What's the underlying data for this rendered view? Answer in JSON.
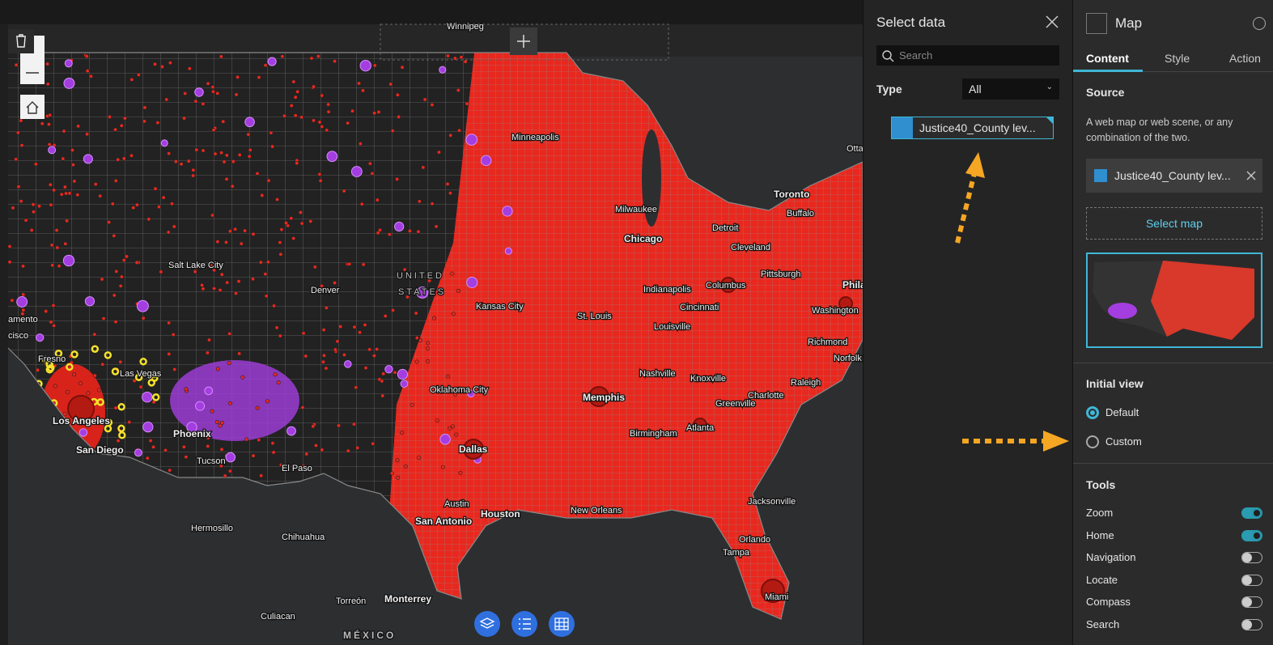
{
  "map": {
    "labels": [
      "Winnipeg",
      "Minneapolis",
      "Toronto",
      "Buffalo",
      "Otta",
      "Milwaukee",
      "Detroit",
      "Chicago",
      "Cleveland",
      "Pittsburgh",
      "Salt Lake City",
      "Denver",
      "UNITED",
      "STATES",
      "Kansas City",
      "Indianapolis",
      "Columbus",
      "Cincinnati",
      "Phila",
      "Washington",
      "St. Louis",
      "Louisville",
      "Richmond",
      "Norfolk",
      "Nashville",
      "Knoxville",
      "Raleigh",
      "Charlotte",
      "Greenville",
      "amento",
      "cisco",
      "Fresno",
      "Las Vegas",
      "Oklahoma City",
      "Memphis",
      "Atlanta",
      "Birmingham",
      "Los Angeles",
      "San Diego",
      "Phoenix",
      "Tucson",
      "El Paso",
      "Dallas",
      "Austin",
      "San Antonio",
      "Houston",
      "New Orleans",
      "Jacksonville",
      "Orlando",
      "Tampa",
      "Miami",
      "Hermosillo",
      "Chihuahua",
      "Monterrey",
      "Torreón",
      "Culiacan",
      "MÉXICO"
    ]
  },
  "select_data": {
    "title": "Select data",
    "search_placeholder": "Search",
    "type_label": "Type",
    "type_value": "All",
    "item": "Justice40_County lev..."
  },
  "map_panel": {
    "title": "Map",
    "tabs": [
      "Content",
      "Style",
      "Action"
    ],
    "source": {
      "heading": "Source",
      "description": "A web map or web scene, or any combination of the two.",
      "item": "Justice40_County lev...",
      "button": "Select map"
    },
    "initial_view": {
      "heading": "Initial view",
      "options": [
        {
          "label": "Default",
          "selected": true
        },
        {
          "label": "Custom",
          "selected": false
        }
      ]
    },
    "tools": {
      "heading": "Tools",
      "items": [
        {
          "label": "Zoom",
          "on": true
        },
        {
          "label": "Home",
          "on": true
        },
        {
          "label": "Navigation",
          "on": false
        },
        {
          "label": "Locate",
          "on": false
        },
        {
          "label": "Compass",
          "on": false
        },
        {
          "label": "Search",
          "on": false
        }
      ]
    }
  }
}
